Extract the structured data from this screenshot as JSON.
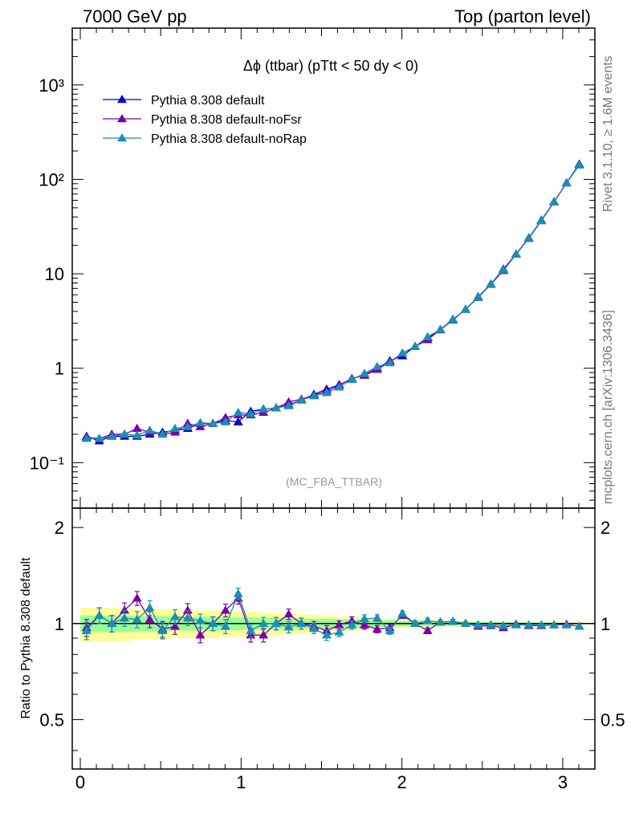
{
  "header": {
    "left": "7000 GeV pp",
    "right": "Top (parton level)"
  },
  "side_labels": {
    "rivet": "Rivet 3.1.10, ≥ 1.6M events",
    "mcplots": "mcplots.cern.ch [arXiv:1306.3436]"
  },
  "chart_data": [
    {
      "type": "line",
      "panel": "main",
      "title": "Δϕ (ttbar) (pTtt < 50 dy < 0)",
      "watermark": "(MC_FBA_TTBAR)",
      "xlabel": "",
      "ylabel": "",
      "xlim": [
        -0.05,
        3.2
      ],
      "ylim": [
        0.033,
        4000
      ],
      "yscale": "log",
      "ytick_labels": [
        "10⁻¹",
        "1",
        "10",
        "10²",
        "10³"
      ],
      "ytick_values": [
        0.1,
        1,
        10,
        100,
        1000
      ],
      "legend_position": "top-left",
      "x": [
        0.039,
        0.118,
        0.196,
        0.275,
        0.353,
        0.432,
        0.511,
        0.589,
        0.668,
        0.746,
        0.825,
        0.903,
        0.982,
        1.06,
        1.139,
        1.218,
        1.296,
        1.375,
        1.453,
        1.532,
        1.61,
        1.689,
        1.767,
        1.846,
        1.925,
        2.003,
        2.082,
        2.16,
        2.239,
        2.317,
        2.396,
        2.474,
        2.553,
        2.631,
        2.71,
        2.789,
        2.867,
        2.946,
        3.024,
        3.103
      ],
      "series": [
        {
          "name": "Pythia 8.308 default",
          "color": "#0000cc",
          "values": [
            0.19,
            0.17,
            0.19,
            0.19,
            0.19,
            0.2,
            0.21,
            0.22,
            0.23,
            0.26,
            0.26,
            0.28,
            0.27,
            0.35,
            0.37,
            0.38,
            0.41,
            0.46,
            0.53,
            0.6,
            0.67,
            0.77,
            0.85,
            1.0,
            1.2,
            1.35,
            1.7,
            2.1,
            2.55,
            3.25,
            4.2,
            5.7,
            7.8,
            11.2,
            16.2,
            24,
            37,
            58,
            92,
            145
          ]
        },
        {
          "name": "Pythia 8.308 default-noFsr",
          "color": "#7a00aa",
          "values": [
            0.185,
            0.18,
            0.2,
            0.2,
            0.23,
            0.21,
            0.2,
            0.21,
            0.26,
            0.24,
            0.26,
            0.3,
            0.32,
            0.32,
            0.34,
            0.38,
            0.44,
            0.47,
            0.52,
            0.57,
            0.66,
            0.78,
            0.84,
            0.97,
            1.17,
            1.44,
            1.7,
            2.0,
            2.57,
            3.3,
            4.2,
            5.6,
            7.7,
            10.8,
            16.1,
            23.6,
            36.4,
            57.5,
            91.5,
            142
          ]
        },
        {
          "name": "Pythia 8.308 default-noRap",
          "color": "#1a8fb3",
          "values": [
            0.18,
            0.18,
            0.19,
            0.2,
            0.195,
            0.22,
            0.2,
            0.23,
            0.24,
            0.265,
            0.26,
            0.27,
            0.34,
            0.33,
            0.37,
            0.38,
            0.4,
            0.46,
            0.51,
            0.55,
            0.63,
            0.76,
            0.88,
            1.04,
            1.14,
            1.45,
            1.7,
            2.15,
            2.58,
            3.3,
            4.2,
            5.63,
            7.75,
            11.0,
            16.1,
            23.7,
            36.7,
            57.6,
            91.3,
            142
          ]
        }
      ]
    },
    {
      "type": "line",
      "panel": "ratio",
      "ylabel": "Ratio to Pythia 8.308 default",
      "xlim": [
        -0.05,
        3.2
      ],
      "ylim": [
        0.35,
        2.3
      ],
      "xtick_labels": [
        "0",
        "1",
        "2",
        "3"
      ],
      "xtick_values": [
        0,
        1,
        2,
        3
      ],
      "ytick_labels": [
        "0.5",
        "1",
        "2"
      ],
      "ytick_values": [
        0.5,
        1,
        2
      ],
      "bands": {
        "stat_green": [
          0.06,
          0.06,
          0.06,
          0.06,
          0.055,
          0.055,
          0.055,
          0.05,
          0.05,
          0.05,
          0.05,
          0.045,
          0.045,
          0.045,
          0.04,
          0.04,
          0.04,
          0.035,
          0.035,
          0.035,
          0.03,
          0.03,
          0.03,
          0.025,
          0.025,
          0.02,
          0.02,
          0.018,
          0.016,
          0.014,
          0.012,
          0.011,
          0.01,
          0.009,
          0.008,
          0.007,
          0.006,
          0.006,
          0.005,
          0.005
        ],
        "syst_yellow": [
          0.12,
          0.12,
          0.12,
          0.12,
          0.11,
          0.11,
          0.11,
          0.1,
          0.1,
          0.1,
          0.1,
          0.09,
          0.09,
          0.09,
          0.085,
          0.08,
          0.075,
          0.07,
          0.065,
          0.06,
          0.055,
          0.05,
          0.045,
          0.04,
          0.035,
          0.03,
          0.028,
          0.026,
          0.024,
          0.022,
          0.02,
          0.018,
          0.016,
          0.014,
          0.012,
          0.011,
          0.01,
          0.01,
          0.009,
          0.009
        ]
      },
      "series": [
        {
          "name": "Pythia 8.308 default-noFsr",
          "color": "#7a00aa",
          "values": [
            0.97,
            1.06,
            1.0,
            1.1,
            1.2,
            1.03,
            0.96,
            0.98,
            1.1,
            0.92,
            1.0,
            1.1,
            1.2,
            0.92,
            0.92,
            1.0,
            1.07,
            1.0,
            0.98,
            0.95,
            0.99,
            1.02,
            0.99,
            0.96,
            0.97,
            1.06,
            1.0,
            0.95,
            1.01,
            1.015,
            1.0,
            0.98,
            0.985,
            0.97,
            0.995,
            0.985,
            0.985,
            0.99,
            0.995,
            0.98
          ]
        },
        {
          "name": "Pythia 8.308 default-noRap",
          "color": "#1a8fb3",
          "values": [
            0.95,
            1.06,
            1.0,
            1.04,
            1.03,
            1.12,
            0.95,
            1.05,
            1.04,
            1.02,
            1.0,
            0.98,
            1.24,
            0.95,
            1.0,
            1.0,
            0.975,
            1.0,
            0.965,
            0.92,
            0.94,
            0.99,
            1.035,
            1.04,
            0.95,
            1.075,
            1.0,
            1.02,
            1.01,
            1.015,
            1.0,
            0.99,
            0.99,
            0.985,
            0.99,
            0.99,
            0.99,
            0.99,
            0.99,
            0.98
          ]
        }
      ],
      "errors": {
        "Pythia 8.308 default-noFsr": [
          0.06,
          0.06,
          0.06,
          0.06,
          0.06,
          0.06,
          0.055,
          0.055,
          0.055,
          0.05,
          0.05,
          0.05,
          0.05,
          0.045,
          0.045,
          0.045,
          0.04,
          0.04,
          0.035,
          0.035,
          0.03,
          0.03,
          0.03,
          0.025,
          0.025,
          0.02,
          0.02,
          0.02,
          0.015,
          0.015,
          0.012,
          0.012,
          0.01,
          0.01,
          0.01,
          0.008,
          0.008,
          0.006,
          0.006,
          0.005
        ],
        "Pythia 8.308 default-noRap": [
          0.06,
          0.06,
          0.06,
          0.06,
          0.06,
          0.06,
          0.055,
          0.055,
          0.055,
          0.05,
          0.05,
          0.05,
          0.05,
          0.045,
          0.045,
          0.045,
          0.04,
          0.04,
          0.035,
          0.035,
          0.03,
          0.03,
          0.03,
          0.025,
          0.025,
          0.02,
          0.02,
          0.02,
          0.015,
          0.015,
          0.012,
          0.012,
          0.01,
          0.01,
          0.01,
          0.008,
          0.008,
          0.006,
          0.006,
          0.005
        ]
      }
    }
  ]
}
